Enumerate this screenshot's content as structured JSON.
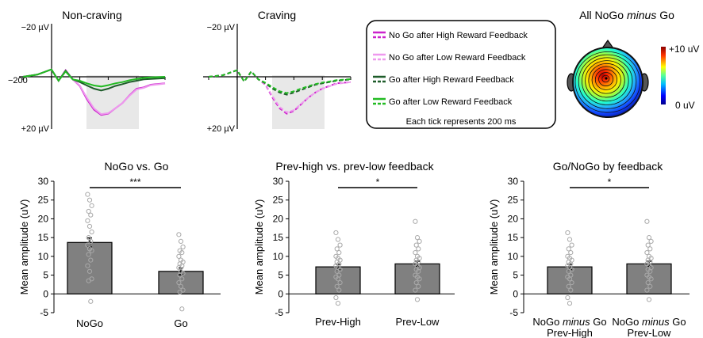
{
  "erp_panels": [
    {
      "title": "Non-craving",
      "y_top_label": "−20 µV",
      "y_bottom_label": "+20 µV",
      "x_zero_label": "−200",
      "tick_ms": 200,
      "amplitude_range_uV": [
        -20,
        20
      ],
      "shaded_window_ms": [
        200,
        600
      ],
      "series": [
        {
          "name": "No Go after High Reward Feedback",
          "color": "#cc22cc",
          "dash": false,
          "x_ms": [
            -200,
            -100,
            0,
            50,
            100,
            150,
            200,
            250,
            300,
            350,
            400,
            450,
            500,
            550,
            600,
            650,
            700,
            800
          ],
          "uV": [
            0,
            -0.8,
            -2.8,
            1.5,
            -2.5,
            1.0,
            3.5,
            8.5,
            12.5,
            14.5,
            14.0,
            12.0,
            10.0,
            7.0,
            4.5,
            4.0,
            3.0,
            2.5
          ]
        },
        {
          "name": "No Go after Low Reward Feedback",
          "color": "#ee99ee",
          "dash": false,
          "x_ms": [
            -200,
            -100,
            0,
            50,
            100,
            150,
            200,
            250,
            300,
            350,
            400,
            450,
            500,
            550,
            600,
            650,
            700,
            800
          ],
          "uV": [
            0,
            -0.8,
            -2.8,
            1.5,
            -2.3,
            1.0,
            3.3,
            8.0,
            12.0,
            14.2,
            13.8,
            12.0,
            10.0,
            7.2,
            4.8,
            4.2,
            3.2,
            2.6
          ]
        },
        {
          "name": "Go after High Reward Feedback",
          "color": "#1e5c2a",
          "dash": false,
          "x_ms": [
            -200,
            -100,
            0,
            50,
            100,
            150,
            200,
            250,
            300,
            350,
            400,
            450,
            500,
            550,
            600,
            650,
            700,
            800
          ],
          "uV": [
            0,
            -0.8,
            -2.8,
            1.5,
            -2.3,
            1.0,
            2.0,
            3.3,
            4.5,
            5.2,
            4.5,
            3.5,
            2.8,
            2.0,
            1.5,
            1.0,
            0.8,
            0.5
          ]
        },
        {
          "name": "Go after Low Reward Feedback",
          "color": "#22bb22",
          "dash": false,
          "x_ms": [
            -200,
            -100,
            0,
            50,
            100,
            150,
            200,
            250,
            300,
            350,
            400,
            450,
            500,
            550,
            600,
            650,
            700,
            800
          ],
          "uV": [
            0,
            -0.8,
            -2.8,
            1.5,
            -2.0,
            1.0,
            1.5,
            2.5,
            3.3,
            3.7,
            3.2,
            2.5,
            2.0,
            1.3,
            0.8,
            0.4,
            0.2,
            0.0
          ]
        }
      ]
    },
    {
      "title": "Craving",
      "y_top_label": "−20 µV",
      "y_bottom_label": "+20 µV",
      "x_zero_label": "",
      "tick_ms": 200,
      "amplitude_range_uV": [
        -20,
        20
      ],
      "shaded_window_ms": [
        200,
        600
      ],
      "series": [
        {
          "name": "No Go after High Reward Feedback",
          "color": "#cc22cc",
          "dash": true,
          "x_ms": [
            -200,
            -100,
            0,
            50,
            100,
            150,
            200,
            250,
            300,
            350,
            400,
            450,
            500,
            550,
            600,
            650,
            700,
            800
          ],
          "uV": [
            0,
            -0.6,
            -2.5,
            1.8,
            -2.0,
            1.0,
            3.0,
            8.0,
            12.0,
            14.0,
            13.0,
            10.5,
            8.0,
            6.0,
            4.5,
            3.5,
            2.5,
            2.0
          ]
        },
        {
          "name": "No Go after Low Reward Feedback",
          "color": "#ee99ee",
          "dash": true,
          "x_ms": [
            -200,
            -100,
            0,
            50,
            100,
            150,
            200,
            250,
            300,
            350,
            400,
            450,
            500,
            550,
            600,
            650,
            700,
            800
          ],
          "uV": [
            0,
            -0.6,
            -2.5,
            1.8,
            -2.0,
            1.0,
            2.8,
            7.5,
            11.5,
            13.5,
            12.7,
            10.3,
            8.0,
            6.0,
            4.6,
            3.6,
            2.7,
            2.0
          ]
        },
        {
          "name": "Go after High Reward Feedback",
          "color": "#1e5c2a",
          "dash": true,
          "x_ms": [
            -200,
            -100,
            0,
            50,
            100,
            150,
            200,
            250,
            300,
            350,
            400,
            450,
            500,
            550,
            600,
            650,
            700,
            800
          ],
          "uV": [
            0,
            -0.6,
            -2.5,
            1.8,
            -2.0,
            1.0,
            2.5,
            4.5,
            6.0,
            6.8,
            6.0,
            5.0,
            4.0,
            3.0,
            2.5,
            2.0,
            1.5,
            1.0
          ]
        },
        {
          "name": "Go after Low Reward Feedback",
          "color": "#22bb22",
          "dash": true,
          "x_ms": [
            -200,
            -100,
            0,
            50,
            100,
            150,
            200,
            250,
            300,
            350,
            400,
            450,
            500,
            550,
            600,
            650,
            700,
            800
          ],
          "uV": [
            0,
            -0.6,
            -2.5,
            1.8,
            -2.0,
            1.0,
            2.3,
            4.0,
            5.5,
            6.2,
            5.5,
            4.5,
            3.6,
            2.8,
            2.2,
            1.8,
            1.3,
            0.9
          ]
        }
      ]
    }
  ],
  "legend": {
    "entries": [
      {
        "label": "No Go after High Reward Feedback",
        "color": "#cc22cc"
      },
      {
        "label": "No Go after Low Reward Feedback",
        "color": "#ee99ee"
      },
      {
        "label": "Go after High Reward Feedback",
        "color": "#1e5c2a"
      },
      {
        "label": "Go after Low Reward Feedback",
        "color": "#22bb22"
      }
    ],
    "note": "Each tick represents 200 ms"
  },
  "topomap": {
    "title_prefix": "All NoGo ",
    "title_italic": "minus",
    "title_suffix": " Go",
    "colorbar_max_label": "+10 uV",
    "colorbar_min_label": "0 uV",
    "colorbar_range_uV": [
      0,
      10
    ]
  },
  "chart_data": [
    {
      "type": "bar",
      "title": "NoGo vs. Go",
      "ylabel": "Mean amplitude (uV)",
      "ylim": [
        -5,
        30
      ],
      "yticks": [
        -5,
        0,
        5,
        10,
        15,
        20,
        25,
        30
      ],
      "categories": [
        "NoGo",
        "Go"
      ],
      "values": [
        13.7,
        6.0
      ],
      "errors": [
        1.2,
        0.9
      ],
      "significance": "***",
      "points": [
        [
          26.5,
          25,
          23.5,
          22,
          21,
          19.5,
          18,
          16.5,
          15,
          14,
          13,
          12,
          11.5,
          10.5,
          9,
          7.5,
          6,
          4,
          3.5,
          -2
        ],
        [
          15.8,
          14,
          12.5,
          11.5,
          11,
          10,
          9,
          8.5,
          8,
          7.5,
          7,
          6,
          5.5,
          5,
          4,
          3,
          2,
          1,
          0.5,
          -4
        ]
      ]
    },
    {
      "type": "bar",
      "title": "Prev-high vs. prev-low feedback",
      "ylabel": "Mean amplitude (uV)",
      "ylim": [
        -5,
        30
      ],
      "yticks": [
        -5,
        0,
        5,
        10,
        15,
        20,
        25,
        30
      ],
      "categories": [
        "Prev-High",
        "Prev-Low"
      ],
      "values": [
        7.2,
        8.0
      ],
      "errors": [
        0.7,
        0.7
      ],
      "significance": "*",
      "points": [
        [
          16.3,
          14.5,
          13,
          12,
          11,
          10,
          9.5,
          9,
          8.5,
          8,
          7.5,
          7,
          6.5,
          6,
          5,
          4.5,
          4,
          3,
          2,
          1,
          -1,
          -2.5
        ],
        [
          19.3,
          15,
          14,
          13,
          12,
          11,
          10,
          9.5,
          9,
          8.5,
          8,
          7.5,
          7,
          6.5,
          6,
          5,
          4.5,
          4,
          3,
          2,
          1,
          -1.5
        ]
      ]
    },
    {
      "type": "bar",
      "title": "Go/NoGo by feedback",
      "ylabel": "Mean amplitude (uV)",
      "ylim": [
        -5,
        30
      ],
      "yticks": [
        -5,
        0,
        5,
        10,
        15,
        20,
        25,
        30
      ],
      "categories": [
        [
          "NoGo ",
          "minus",
          " Go",
          "Prev-High"
        ],
        [
          "NoGo ",
          "minus",
          " Go",
          "Prev-Low"
        ]
      ],
      "values": [
        7.2,
        8.0
      ],
      "errors": [
        0.7,
        0.7
      ],
      "significance": "*",
      "points": [
        [
          16.3,
          14.5,
          13,
          12,
          11,
          10,
          9.5,
          9,
          8.5,
          8,
          7.5,
          7,
          6.5,
          6,
          5,
          4.5,
          4,
          3,
          2,
          1,
          -1,
          -2.5
        ],
        [
          19.3,
          15,
          14,
          13,
          12,
          11,
          10,
          9.5,
          9,
          8.5,
          8,
          7.5,
          7,
          6.5,
          6,
          5,
          4.5,
          4,
          3,
          2,
          1,
          -1.5
        ]
      ]
    }
  ]
}
